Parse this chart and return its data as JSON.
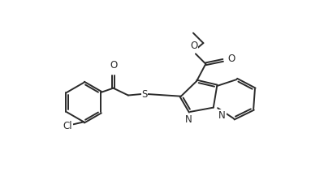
{
  "bg_color": "#ffffff",
  "line_color": "#2a2a2a",
  "line_width": 1.4,
  "font_size": 8.5,
  "fig_width": 3.83,
  "fig_height": 2.38,
  "xlim": [
    0,
    10
  ],
  "ylim": [
    0,
    6.2
  ]
}
